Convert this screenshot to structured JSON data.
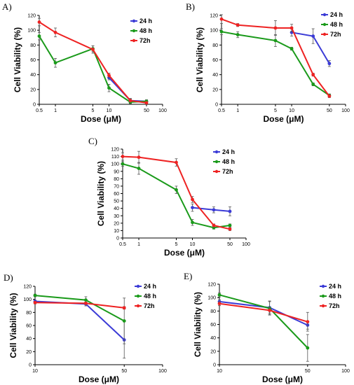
{
  "colors": {
    "24 h": "#3b3bd6",
    "48 h": "#1a9a1a",
    "72h": "#ee2222"
  },
  "chart_data": [
    {
      "type": "line",
      "panel_label": "A)",
      "xlabel": "Dose (μM)",
      "ylabel": "Cell Viability (%)",
      "xscale": "log",
      "xlim": [
        0.5,
        100
      ],
      "ylim": [
        0,
        120
      ],
      "xticks": [
        0.5,
        1,
        5,
        10,
        50,
        100
      ],
      "xtick_labels": [
        "0.5",
        "1",
        "5",
        "10",
        "50",
        "100"
      ],
      "yticks": [
        0,
        20,
        40,
        60,
        80,
        100,
        120
      ],
      "ytick_labels": [
        "0",
        "20",
        "40",
        "60",
        "80",
        "100",
        "120"
      ],
      "legend_position": "top-right",
      "series": [
        {
          "name": "24 h",
          "x": [
            10,
            25,
            50
          ],
          "y": [
            36,
            5,
            4
          ],
          "err": [
            3,
            3,
            2
          ]
        },
        {
          "name": "48 h",
          "x": [
            0.5,
            1,
            5,
            10,
            25,
            50
          ],
          "y": [
            92,
            56,
            75,
            22,
            3,
            4
          ],
          "err": [
            5,
            6,
            4,
            5,
            2,
            2
          ]
        },
        {
          "name": "72h",
          "x": [
            0.5,
            1,
            5,
            10,
            25,
            50
          ],
          "y": [
            111,
            97,
            74,
            39,
            5,
            2
          ],
          "err": [
            5,
            6,
            5,
            3,
            2,
            1
          ]
        }
      ]
    },
    {
      "type": "line",
      "panel_label": "B)",
      "xlabel": "Dose (μM)",
      "ylabel": "Cell Viability (%)",
      "xscale": "log",
      "xlim": [
        0.5,
        100
      ],
      "ylim": [
        0,
        120
      ],
      "xticks": [
        0.5,
        1,
        5,
        10,
        50,
        100
      ],
      "xtick_labels": [
        "0.5",
        "1",
        "5",
        "10",
        "50",
        "100"
      ],
      "yticks": [
        0,
        20,
        40,
        60,
        80,
        100,
        120
      ],
      "ytick_labels": [
        "0",
        "20",
        "40",
        "60",
        "80",
        "100",
        "120"
      ],
      "legend_position": "top-right",
      "series": [
        {
          "name": "24 h",
          "x": [
            10,
            25,
            50
          ],
          "y": [
            97,
            92,
            55
          ],
          "err": [
            5,
            10,
            4
          ]
        },
        {
          "name": "48 h",
          "x": [
            0.5,
            1,
            5,
            10,
            25,
            50
          ],
          "y": [
            98,
            94,
            86,
            75,
            27,
            12
          ],
          "err": [
            4,
            4,
            8,
            2,
            2,
            2
          ]
        },
        {
          "name": "72h",
          "x": [
            0.5,
            1,
            5,
            10,
            25,
            50
          ],
          "y": [
            115,
            107,
            103,
            103,
            40,
            11
          ],
          "err": [
            6,
            2,
            10,
            5,
            2,
            2
          ]
        }
      ]
    },
    {
      "type": "line",
      "panel_label": "C)",
      "xlabel": "Dose (μM)",
      "ylabel": "Cell Viability (%)",
      "xscale": "log",
      "xlim": [
        0.5,
        100
      ],
      "ylim": [
        0,
        120
      ],
      "xticks": [
        0.5,
        1,
        5,
        10,
        50,
        100
      ],
      "xtick_labels": [
        "0.5",
        "1",
        "5",
        "10",
        "50",
        "100"
      ],
      "yticks": [
        0,
        10,
        20,
        30,
        40,
        50,
        60,
        70,
        80,
        90,
        100,
        110,
        120
      ],
      "ytick_labels": [
        "0",
        "10",
        "20",
        "30",
        "40",
        "50",
        "60",
        "70",
        "80",
        "90",
        "100",
        "110",
        "120"
      ],
      "legend_position": "top-right",
      "series": [
        {
          "name": "24 h",
          "x": [
            10,
            25,
            50
          ],
          "y": [
            41,
            38,
            36
          ],
          "err": [
            5,
            4,
            6
          ]
        },
        {
          "name": "48 h",
          "x": [
            0.5,
            1,
            5,
            10,
            25,
            50
          ],
          "y": [
            100,
            94,
            65,
            21,
            14,
            17
          ],
          "err": [
            3,
            8,
            5,
            4,
            2,
            2
          ]
        },
        {
          "name": "72h",
          "x": [
            0.5,
            1,
            5,
            10,
            25,
            50
          ],
          "y": [
            110,
            109,
            102,
            52,
            17,
            12
          ],
          "err": [
            5,
            8,
            5,
            4,
            2,
            2
          ]
        }
      ]
    },
    {
      "type": "line",
      "panel_label": "D)",
      "xlabel": "Dose (μM)",
      "ylabel": "Cell Viability (%)",
      "xscale": "log",
      "xlim": [
        10,
        100
      ],
      "ylim": [
        0,
        120
      ],
      "xticks": [
        10,
        50,
        100
      ],
      "xtick_labels": [
        "10",
        "50",
        "100"
      ],
      "yticks": [
        0,
        20,
        40,
        60,
        80,
        100,
        120
      ],
      "ytick_labels": [
        "0",
        "20",
        "40",
        "60",
        "80",
        "100",
        "120"
      ],
      "legend_position": "top-right",
      "series": [
        {
          "name": "24 h",
          "x": [
            10,
            25,
            50
          ],
          "y": [
            97,
            93,
            38
          ],
          "err": [
            2,
            3,
            28
          ]
        },
        {
          "name": "48 h",
          "x": [
            10,
            25,
            50
          ],
          "y": [
            106,
            99,
            67
          ],
          "err": [
            2,
            5,
            35
          ]
        },
        {
          "name": "72h",
          "x": [
            10,
            25,
            50
          ],
          "y": [
            95,
            94,
            87
          ],
          "err": [
            2,
            2,
            2
          ]
        }
      ]
    },
    {
      "type": "line",
      "panel_label": "E)",
      "xlabel": "Dose (μM)",
      "ylabel": "Cell Viability (%)",
      "xscale": "log",
      "xlim": [
        10,
        100
      ],
      "ylim": [
        0,
        120
      ],
      "xticks": [
        10,
        50,
        100
      ],
      "xtick_labels": [
        "10",
        "50",
        "100"
      ],
      "yticks": [
        0,
        20,
        40,
        60,
        80,
        100,
        120
      ],
      "ytick_labels": [
        "0",
        "20",
        "40",
        "60",
        "80",
        "100",
        "120"
      ],
      "legend_position": "top-right",
      "series": [
        {
          "name": "24 h",
          "x": [
            10,
            25,
            50
          ],
          "y": [
            94,
            85,
            59
          ],
          "err": [
            3,
            10,
            6
          ]
        },
        {
          "name": "48 h",
          "x": [
            10,
            25,
            50
          ],
          "y": [
            104,
            84,
            25
          ],
          "err": [
            3,
            10,
            20
          ]
        },
        {
          "name": "72h",
          "x": [
            10,
            25,
            50
          ],
          "y": [
            91,
            81,
            64
          ],
          "err": [
            3,
            4,
            14
          ]
        }
      ]
    }
  ]
}
